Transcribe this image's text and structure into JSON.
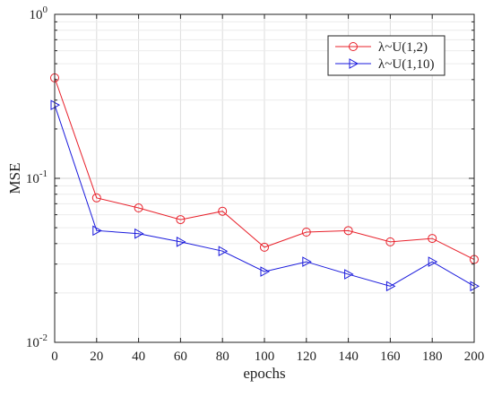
{
  "chart_data": {
    "type": "line",
    "xlabel": "epochs",
    "ylabel": "MSE",
    "yscale": "log",
    "xlim": [
      0,
      200
    ],
    "ylim": [
      0.01,
      1
    ],
    "xticks": [
      0,
      20,
      40,
      60,
      80,
      100,
      120,
      140,
      160,
      180,
      200
    ],
    "yticks": [
      {
        "value": 0.01,
        "base": "10",
        "exp": "-2"
      },
      {
        "value": 0.1,
        "base": "10",
        "exp": "-1"
      },
      {
        "value": 1,
        "base": "10",
        "exp": "0"
      }
    ],
    "grid": true,
    "legend_position": "top-right",
    "x": [
      0,
      20,
      40,
      60,
      80,
      100,
      120,
      140,
      160,
      180,
      200
    ],
    "series": [
      {
        "name": "λ~U(1,2)",
        "color": "#e8202a",
        "marker": "circle",
        "values": [
          0.41,
          0.076,
          0.066,
          0.056,
          0.063,
          0.038,
          0.047,
          0.048,
          0.041,
          0.043,
          0.032
        ]
      },
      {
        "name": "λ~U(1,10)",
        "color": "#1a1adc",
        "marker": "triangle-right",
        "values": [
          0.28,
          0.048,
          0.046,
          0.041,
          0.036,
          0.027,
          0.031,
          0.026,
          0.022,
          0.031,
          0.022
        ]
      }
    ]
  }
}
